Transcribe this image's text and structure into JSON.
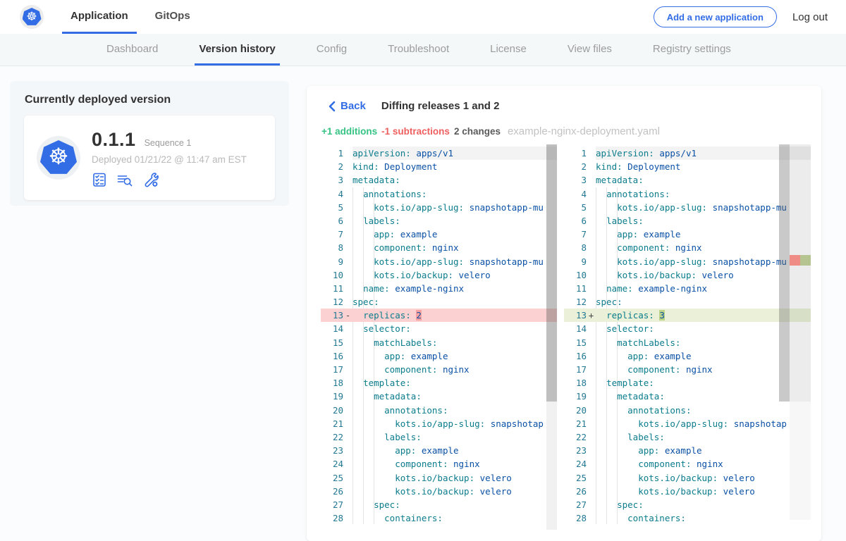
{
  "navbar": {
    "logo": "kubernetes-logo",
    "tabs": [
      {
        "label": "Application",
        "active": true
      },
      {
        "label": "GitOps",
        "active": false
      }
    ],
    "add_button": "Add a new application",
    "logout": "Log out"
  },
  "subnav": {
    "items": [
      "Dashboard",
      "Version history",
      "Config",
      "Troubleshoot",
      "License",
      "View files",
      "Registry settings"
    ],
    "active": "Version history"
  },
  "deployed": {
    "heading": "Currently deployed version",
    "version": "0.1.1",
    "sequence": "Sequence 1",
    "deployed_at": "Deployed 01/21/22 @ 11:47 am EST",
    "action_icons": [
      "checklist-icon",
      "logs-search-icon",
      "config-wrench-icon"
    ]
  },
  "diff": {
    "back_label": "Back",
    "title": "Diffing releases 1 and 2",
    "additions_label": "+1 additions",
    "subtractions_label": "-1 subtractions",
    "changes_label": "2 changes",
    "filename": "example-nginx-deployment.yaml"
  },
  "editor": {
    "left_marker": "-",
    "right_marker": "+",
    "lines": [
      {
        "n": 1,
        "i": 0,
        "k": "apiVersion",
        "v": "apps/v1"
      },
      {
        "n": 2,
        "i": 0,
        "k": "kind",
        "v": "Deployment"
      },
      {
        "n": 3,
        "i": 0,
        "k": "metadata"
      },
      {
        "n": 4,
        "i": 1,
        "k": "annotations"
      },
      {
        "n": 5,
        "i": 2,
        "k": "kots.io/app-slug",
        "v": "snapshotapp-mu"
      },
      {
        "n": 6,
        "i": 1,
        "k": "labels"
      },
      {
        "n": 7,
        "i": 2,
        "k": "app",
        "v": "example"
      },
      {
        "n": 8,
        "i": 2,
        "k": "component",
        "v": "nginx"
      },
      {
        "n": 9,
        "i": 2,
        "k": "kots.io/app-slug",
        "v": "snapshotapp-mu"
      },
      {
        "n": 10,
        "i": 2,
        "k": "kots.io/backup",
        "v": "velero"
      },
      {
        "n": 11,
        "i": 1,
        "k": "name",
        "v": "example-nginx"
      },
      {
        "n": 12,
        "i": 0,
        "k": "spec"
      },
      {
        "n": 13,
        "i": 1,
        "k": "replicas",
        "diff": true,
        "left_v": "2",
        "right_v": "3"
      },
      {
        "n": 14,
        "i": 1,
        "k": "selector"
      },
      {
        "n": 15,
        "i": 2,
        "k": "matchLabels"
      },
      {
        "n": 16,
        "i": 3,
        "k": "app",
        "v": "example"
      },
      {
        "n": 17,
        "i": 3,
        "k": "component",
        "v": "nginx"
      },
      {
        "n": 18,
        "i": 1,
        "k": "template"
      },
      {
        "n": 19,
        "i": 2,
        "k": "metadata"
      },
      {
        "n": 20,
        "i": 3,
        "k": "annotations"
      },
      {
        "n": 21,
        "i": 4,
        "k": "kots.io/app-slug",
        "v": "snapshotap"
      },
      {
        "n": 22,
        "i": 3,
        "k": "labels"
      },
      {
        "n": 23,
        "i": 4,
        "k": "app",
        "v": "example"
      },
      {
        "n": 24,
        "i": 4,
        "k": "component",
        "v": "nginx"
      },
      {
        "n": 25,
        "i": 4,
        "k": "kots.io/backup",
        "v": "velero"
      },
      {
        "n": 26,
        "i": 4,
        "k": "kots.io/backup",
        "v": "velero"
      },
      {
        "n": 27,
        "i": 2,
        "k": "spec"
      },
      {
        "n": 28,
        "i": 3,
        "k": "containers"
      }
    ]
  },
  "colors": {
    "accent": "#326de6",
    "additions_green": "#35c383",
    "subtractions_red": "#f05f5f",
    "yaml_key": "#0b7c8c",
    "yaml_value": "#0a50a5",
    "line_number": "#237893",
    "removed_line_bg": "#fbd1d1",
    "removed_char_bg": "#f7a1a1",
    "added_line_bg": "#eaf1d8",
    "added_char_bg": "#bdd588",
    "ruler_removed": "#ef8c86",
    "ruler_added": "#b6c492"
  }
}
